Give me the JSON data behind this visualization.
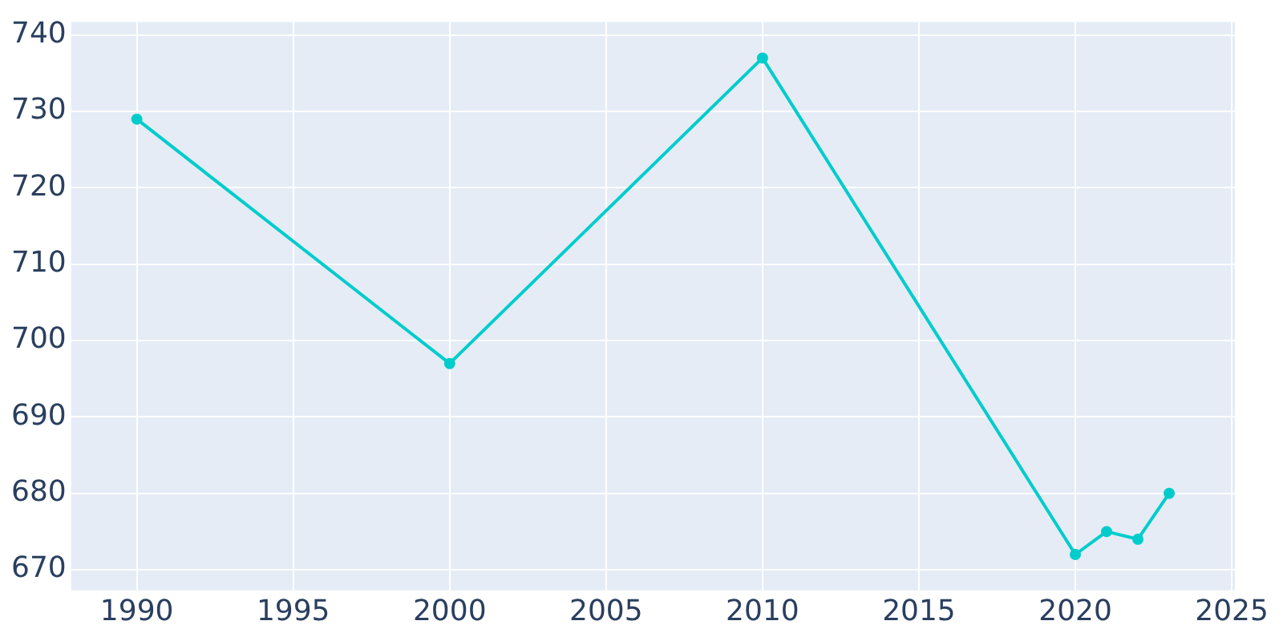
{
  "chart_data": {
    "type": "line",
    "x": [
      1990,
      2000,
      2010,
      2020,
      2021,
      2022,
      2023
    ],
    "series": [
      {
        "color": "#00cccc",
        "values": [
          729,
          697,
          737,
          672,
          675,
          674,
          680
        ]
      }
    ],
    "xlim": [
      1987.9,
      2025.1
    ],
    "ylim": [
      667.3,
      741.7
    ],
    "xticks": [
      1990,
      1995,
      2000,
      2005,
      2010,
      2015,
      2020,
      2025
    ],
    "yticks": [
      670,
      680,
      690,
      700,
      710,
      720,
      730,
      740
    ],
    "grid": true,
    "legend": false,
    "marker": "circle",
    "line_style": "solid"
  }
}
